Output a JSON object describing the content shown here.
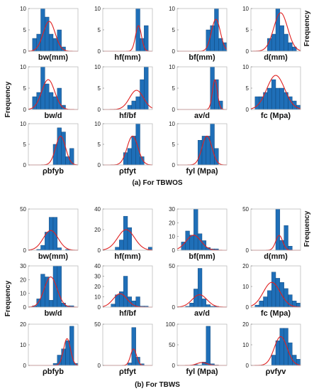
{
  "captions": {
    "top": "(a) For TBWOS",
    "bottom": "(b) For TBWS"
  },
  "frequency_label": "Frequency",
  "chart_data": [
    {
      "type": "bar",
      "group": "a",
      "xlabel": "bw(mm)",
      "ylim": [
        0,
        10
      ],
      "yticks": [
        0,
        5,
        10
      ],
      "values": [
        0,
        3,
        4,
        10,
        8,
        4,
        3,
        5,
        1,
        0,
        0,
        0
      ],
      "fit": {
        "mu": 0.42,
        "sigma": 0.12,
        "peak": 7
      }
    },
    {
      "type": "bar",
      "group": "a",
      "xlabel": "hf(mm)",
      "ylim": [
        0,
        10
      ],
      "yticks": [
        0,
        5,
        10
      ],
      "values": [
        0,
        0,
        0,
        0,
        0,
        0,
        0,
        0,
        10,
        3,
        6,
        0
      ],
      "fit": {
        "mu": 0.72,
        "sigma": 0.06,
        "peak": 6
      }
    },
    {
      "type": "bar",
      "group": "a",
      "xlabel": "bf(mm)",
      "ylim": [
        0,
        10
      ],
      "yticks": [
        0,
        5,
        10
      ],
      "values": [
        0,
        0,
        0,
        0,
        0,
        0,
        0,
        5,
        6,
        10,
        3,
        2
      ],
      "fit": {
        "mu": 0.78,
        "sigma": 0.09,
        "peak": 7.5
      }
    },
    {
      "type": "bar",
      "group": "a",
      "xlabel": "d(mm)",
      "ylim": [
        0,
        10
      ],
      "yticks": [
        0,
        5,
        10
      ],
      "values": [
        0,
        0,
        0,
        0,
        3,
        4,
        10,
        6,
        4,
        2,
        1,
        0
      ],
      "fit": {
        "mu": 0.6,
        "sigma": 0.14,
        "peak": 9
      }
    },
    {
      "type": "bar",
      "group": "a",
      "xlabel": "bw/d",
      "ylim": [
        0,
        10
      ],
      "yticks": [
        0,
        5,
        10
      ],
      "values": [
        0,
        3,
        4,
        10,
        6,
        4,
        3,
        5,
        1,
        0,
        0,
        0
      ],
      "fit": {
        "mu": 0.4,
        "sigma": 0.13,
        "peak": 7
      }
    },
    {
      "type": "bar",
      "group": "a",
      "xlabel": "hf/bf",
      "ylim": [
        0,
        10
      ],
      "yticks": [
        0,
        5,
        10
      ],
      "values": [
        0,
        0,
        0,
        0,
        0,
        0,
        1,
        2,
        3,
        7,
        11,
        0
      ],
      "fit": {
        "mu": 0.68,
        "sigma": 0.14,
        "peak": 4.5
      }
    },
    {
      "type": "bar",
      "group": "a",
      "xlabel": "av/d",
      "ylim": [
        0,
        10
      ],
      "yticks": [
        0,
        5,
        10
      ],
      "values": [
        0,
        0,
        0,
        0,
        0,
        0,
        0,
        0,
        11,
        7,
        2,
        0
      ],
      "fit": {
        "mu": 0.76,
        "sigma": 0.05,
        "peak": 7
      }
    },
    {
      "type": "bar",
      "group": "a",
      "xlabel": "fc (Mpa)",
      "ylim": [
        0,
        10
      ],
      "yticks": [
        0,
        5,
        10
      ],
      "values": [
        0,
        3,
        3,
        4,
        5,
        7,
        5,
        5,
        4,
        3,
        2,
        1
      ],
      "fit": {
        "mu": 0.5,
        "sigma": 0.18,
        "peak": 8
      }
    },
    {
      "type": "bar",
      "group": "a",
      "xlabel": "ρbfyb",
      "ylim": [
        0,
        10
      ],
      "yticks": [
        0,
        5,
        10
      ],
      "values": [
        0,
        0,
        0,
        0,
        0,
        0,
        5,
        9,
        8,
        2,
        4,
        0
      ],
      "fit": {
        "mu": 0.65,
        "sigma": 0.1,
        "peak": 7
      }
    },
    {
      "type": "bar",
      "group": "a",
      "xlabel": "ρtfyt",
      "ylim": [
        0,
        10
      ],
      "yticks": [
        0,
        5,
        10
      ],
      "values": [
        0,
        0,
        0,
        0,
        0,
        3,
        4,
        7,
        10,
        2,
        0,
        0
      ],
      "fit": {
        "mu": 0.6,
        "sigma": 0.11,
        "peak": 7
      }
    },
    {
      "type": "bar",
      "group": "a",
      "xlabel": "fyl (Mpa)",
      "ylim": [
        0,
        10
      ],
      "yticks": [
        0,
        5,
        10
      ],
      "values": [
        0,
        0,
        0,
        0,
        0,
        6,
        7,
        7,
        10,
        4,
        0,
        0
      ],
      "fit": {
        "mu": 0.6,
        "sigma": 0.1,
        "peak": 7
      }
    },
    {
      "type": "bar",
      "group": "b",
      "xlabel": "bw(mm)",
      "ylim": [
        0,
        50
      ],
      "yticks": [
        0,
        50
      ],
      "values": [
        0,
        0,
        1,
        6,
        22,
        40,
        40,
        3,
        0,
        1,
        0,
        0
      ],
      "fit": {
        "mu": 0.45,
        "sigma": 0.15,
        "peak": 24
      }
    },
    {
      "type": "bar",
      "group": "b",
      "xlabel": "hf(mm)",
      "ylim": [
        0,
        40
      ],
      "yticks": [
        0,
        20,
        40
      ],
      "values": [
        0,
        0,
        0,
        3,
        10,
        33,
        22,
        0,
        0,
        0,
        0,
        3
      ],
      "fit": {
        "mu": 0.47,
        "sigma": 0.17,
        "peak": 20
      }
    },
    {
      "type": "bar",
      "group": "b",
      "xlabel": "bf(mm)",
      "ylim": [
        0,
        30
      ],
      "yticks": [
        0,
        10,
        20,
        30
      ],
      "values": [
        0,
        6,
        14,
        11,
        30,
        12,
        7,
        2,
        1,
        1,
        0,
        0
      ],
      "fit": {
        "mu": 0.33,
        "sigma": 0.15,
        "peak": 11
      }
    },
    {
      "type": "bar",
      "group": "b",
      "xlabel": "d(mm)",
      "ylim": [
        0,
        50
      ],
      "yticks": [
        0,
        50
      ],
      "values": [
        0,
        0,
        0,
        0,
        0,
        0,
        50,
        12,
        30,
        5,
        0,
        0
      ],
      "fit": {
        "mu": 0.57,
        "sigma": 0.07,
        "peak": 18
      }
    },
    {
      "type": "bar",
      "group": "b",
      "xlabel": "bw/d",
      "ylim": [
        0,
        30
      ],
      "yticks": [
        0,
        10,
        20,
        30
      ],
      "values": [
        0,
        1,
        6,
        24,
        22,
        5,
        30,
        30,
        3,
        1,
        1,
        0
      ],
      "fit": {
        "mu": 0.45,
        "sigma": 0.13,
        "peak": 22
      }
    },
    {
      "type": "bar",
      "group": "b",
      "xlabel": "hf/bf",
      "ylim": [
        0,
        40
      ],
      "yticks": [
        0,
        10,
        20,
        30,
        40
      ],
      "values": [
        0,
        0,
        3,
        12,
        15,
        30,
        10,
        6,
        10,
        1,
        1,
        0
      ],
      "fit": {
        "mu": 0.35,
        "sigma": 0.14,
        "peak": 13
      }
    },
    {
      "type": "bar",
      "group": "b",
      "xlabel": "av/d",
      "ylim": [
        0,
        50
      ],
      "yticks": [
        0,
        50
      ],
      "values": [
        0,
        0,
        1,
        5,
        22,
        47,
        10,
        3,
        1,
        1,
        0,
        0
      ],
      "fit": {
        "mu": 0.45,
        "sigma": 0.15,
        "peak": 15
      }
    },
    {
      "type": "bar",
      "group": "b",
      "xlabel": "fc (Mpa)",
      "ylim": [
        0,
        20
      ],
      "yticks": [
        0,
        10,
        20
      ],
      "values": [
        0,
        1,
        3,
        5,
        8,
        17,
        14,
        12,
        9,
        6,
        3,
        2
      ],
      "fit": {
        "mu": 0.42,
        "sigma": 0.17,
        "peak": 12
      }
    },
    {
      "type": "bar",
      "group": "b",
      "xlabel": "ρbfyb",
      "ylim": [
        0,
        20
      ],
      "yticks": [
        0,
        10,
        20
      ],
      "values": [
        0,
        0,
        0,
        0,
        0,
        0,
        1,
        5,
        8,
        12,
        19,
        1
      ],
      "fit": {
        "mu": 0.78,
        "sigma": 0.07,
        "peak": 13
      }
    },
    {
      "type": "bar",
      "group": "b",
      "xlabel": "ρtfyt",
      "ylim": [
        0,
        50
      ],
      "yticks": [
        0,
        50
      ],
      "values": [
        0,
        0,
        0,
        0,
        0,
        0,
        3,
        46,
        10,
        2,
        0,
        0
      ],
      "fit": {
        "mu": 0.62,
        "sigma": 0.06,
        "peak": 20
      }
    },
    {
      "type": "bar",
      "group": "b",
      "xlabel": "fyl (Mpa)",
      "ylim": [
        0,
        100
      ],
      "yticks": [
        0,
        50,
        100
      ],
      "values": [
        0,
        0,
        0,
        0,
        2,
        1,
        8,
        95,
        4,
        1,
        0,
        0
      ],
      "fit": {
        "mu": 0.5,
        "sigma": 0.1,
        "peak": 7
      }
    },
    {
      "type": "bar",
      "group": "b",
      "xlabel": "ρvfyv",
      "ylim": [
        0,
        20
      ],
      "yticks": [
        0,
        10,
        20
      ],
      "values": [
        0,
        0,
        0,
        0,
        0,
        5,
        12,
        18,
        18,
        11,
        5,
        3
      ],
      "fit": {
        "mu": 0.6,
        "sigma": 0.13,
        "peak": 14
      }
    }
  ]
}
